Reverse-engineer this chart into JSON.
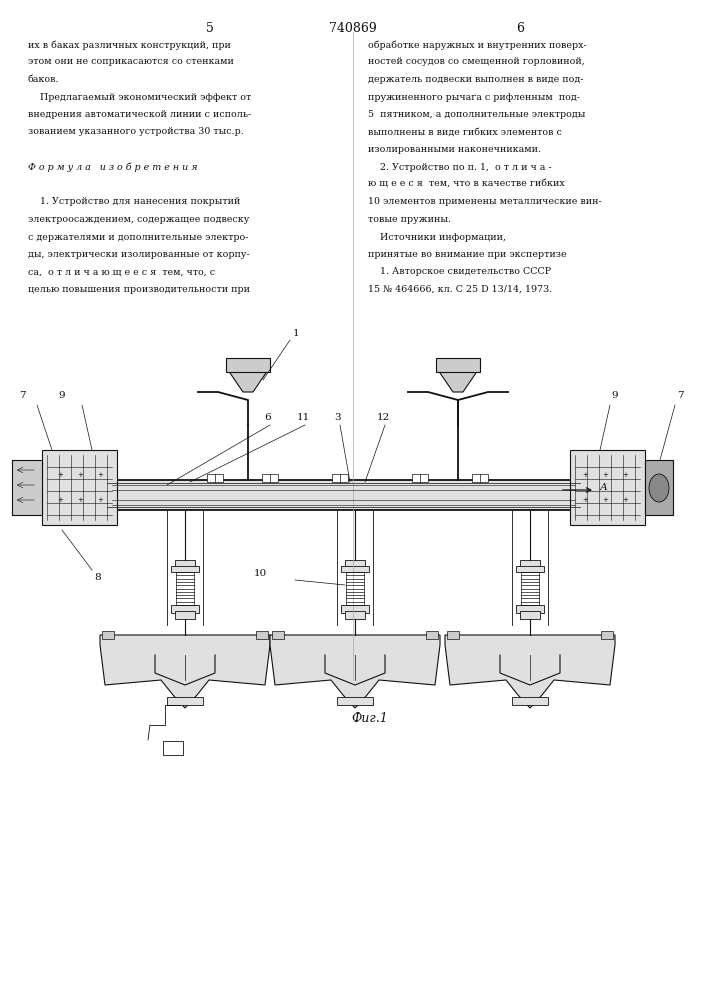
{
  "page_number_left": "5",
  "page_number_right": "6",
  "patent_number": "740869",
  "background_color": "#ffffff",
  "text_color": "#1a1a1a",
  "left_col_lines": [
    "их в баках различных конструкций, при",
    "этом они не соприкасаются со стенками",
    "баков.",
    "    Предлагаемый экономический эффект от",
    "внедрения автоматической линии с исполь-",
    "зованием указанного устройства 30 тыс.р.",
    "",
    "Ф о р м у л а   и з о б р е т е н и я",
    "",
    "    1. Устройство для нанесения покрытий",
    "электроосаждением, содержащее подвеску",
    "с держателями и дополнительные электро-",
    "ды, электрически изолированные от корпу-",
    "са,  о т л и ч а ю щ е е с я  тем, что, с",
    "целью повышения производительности при"
  ],
  "right_col_lines": [
    "обработке наружных и внутренних поверх-",
    "ностей сосудов со смещенной горловиной,",
    "держатель подвески выполнен в виде под-",
    "пружиненного рычага с рифленным  под-",
    "5  пятником, а дополнительные электроды",
    "выполнены в виде гибких элементов с",
    "изолированными наконечниками.",
    "    2. Устройство по п. 1,  о т л и ч а -",
    "ю щ е е с я  тем, что в качестве гибких",
    "10 элементов применены металлические вин-",
    "товые пружины.",
    "    Источники информации,",
    "принятые во внимание при экспертизе",
    "    1. Авторское свидетельство СССР",
    "15 № 464666, кл. С 25 D 13/14, 1973."
  ],
  "fig_caption": "Фиг.1"
}
